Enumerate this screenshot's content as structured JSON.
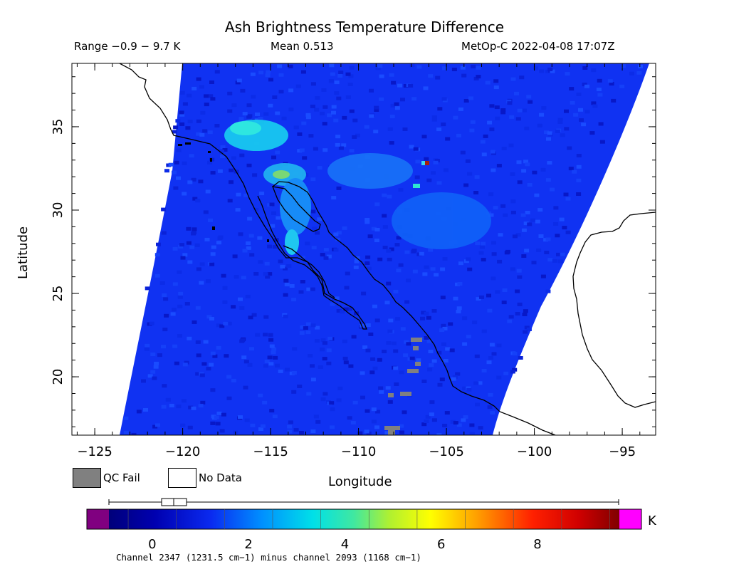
{
  "header": {
    "title": "Ash Brightness Temperature Difference",
    "range": "Range −0.9 − 9.7 K",
    "mean": "Mean 0.513",
    "satellite_time": "MetOp-C 2022-04-08 17:07Z"
  },
  "axes": {
    "ylabel": "Latitude",
    "xlabel": "Longitude",
    "lat_ticks": [
      "35",
      "30",
      "25",
      "20"
    ],
    "lon_ticks": [
      "−125",
      "−120",
      "−115",
      "−110",
      "−105",
      "−100",
      "−95"
    ],
    "lat_range": [
      16.5,
      38.8
    ],
    "lon_range": [
      -126.3,
      -93.1
    ]
  },
  "legend": {
    "qc_fail": "QC Fail",
    "no_data": "No Data"
  },
  "colorbar": {
    "ticks": [
      "0",
      "2",
      "4",
      "6",
      "8"
    ],
    "unit": "K",
    "min": -0.9,
    "max": 9.7,
    "underflow_color": "#800080",
    "overflow_color": "#ff00ff"
  },
  "footnote": "Channel 2347 (1231.5 cm−1) minus channel 2093 (1168 cm−1)",
  "colors": {
    "swath_blue": "#1030f0",
    "ash_cyan": "#20e0e0",
    "qc_gray": "#808080",
    "hot_pixel": "#b02000"
  }
}
